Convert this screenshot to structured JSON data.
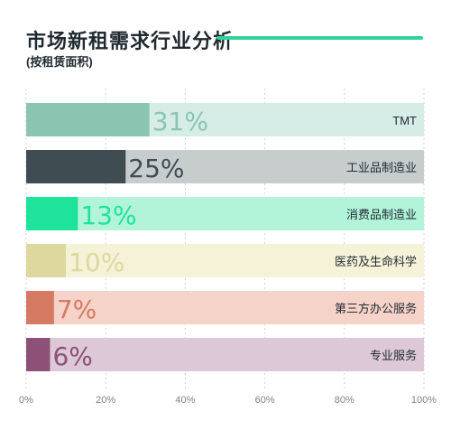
{
  "title": "市场新租需求行业分析",
  "subtitle": "(按租赁面积)",
  "colors": {
    "accent": "#2fd39a"
  },
  "chart_data": {
    "type": "bar",
    "orientation": "horizontal",
    "title": "市场新租需求行业分析",
    "subtitle": "(按租赁面积)",
    "xlim": [
      0,
      100
    ],
    "x_ticks": [
      "0%",
      "20%",
      "40%",
      "60%",
      "80%",
      "100%"
    ],
    "grid": "vertical-dotted",
    "categories": [
      "TMT",
      "工业品制造业",
      "消费品制造业",
      "医药及生命科学",
      "第三方办公服务",
      "专业服务"
    ],
    "values": [
      31,
      25,
      13,
      10,
      7,
      6
    ],
    "value_labels": [
      "31%",
      "25%",
      "13%",
      "10%",
      "7%",
      "6%"
    ],
    "bar_colors": [
      "#8cc4b2",
      "#3f4c51",
      "#1ee39a",
      "#dcd89e",
      "#d67a63",
      "#8d5077"
    ],
    "track_colors": [
      "#d6ece6",
      "#c7cdcd",
      "#b2f4da",
      "#f5f2d8",
      "#f5d3c8",
      "#dcc8d6"
    ],
    "label_colors": [
      "#8cc4b2",
      "#3f4c51",
      "#1ee39a",
      "#dcd89e",
      "#d67a63",
      "#8d5077"
    ]
  }
}
